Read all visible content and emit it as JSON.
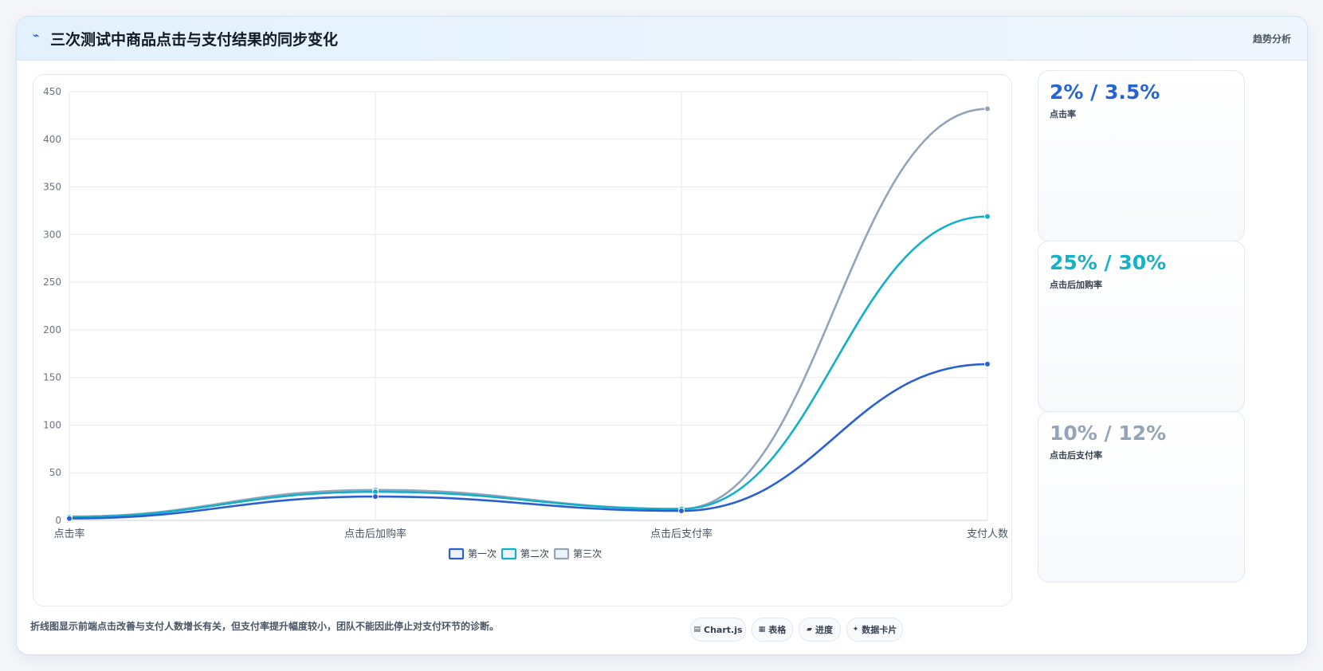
{
  "header": {
    "title": "三次测试中商品点击与支付结果的同步变化",
    "title_icon": "trend-icon",
    "tag": "趋势分析"
  },
  "chart_data": {
    "type": "line",
    "categories": [
      "点击率",
      "点击后加购率",
      "点击后支付率",
      "支付人数"
    ],
    "ylim": [
      0,
      450
    ],
    "yticks": [
      0,
      50,
      100,
      150,
      200,
      250,
      300,
      350,
      400,
      450
    ],
    "grid": true,
    "legend_position": "bottom",
    "series": [
      {
        "name": "第一次",
        "values": [
          2,
          25,
          10,
          164
        ],
        "color": "#2b5fd1"
      },
      {
        "name": "第二次",
        "values": [
          3.5,
          30,
          12,
          319
        ],
        "color": "#12b0c8"
      },
      {
        "name": "第三次",
        "values": [
          4,
          32,
          12,
          432
        ],
        "color": "#94a3b8"
      }
    ]
  },
  "cards": [
    {
      "value": "2% / 3.5%",
      "label": "点击率",
      "color": "#2563d6"
    },
    {
      "value": "25% / 30%",
      "label": "点击后加购率",
      "color": "#14b2c7"
    },
    {
      "value": "10% / 12%",
      "label": "点击后支付率",
      "color": "#94a3b8"
    }
  ],
  "footnote": "折线图显示前端点击改善与支付人数增长有关，但支付率提升幅度较小，团队不能因此停止对支付环节的诊断。",
  "chips": [
    {
      "icon": "▤",
      "icon_name": "chart-icon",
      "label": "Chart.js"
    },
    {
      "icon": "▦",
      "icon_name": "table-icon",
      "label": "表格"
    },
    {
      "icon": "▰",
      "icon_name": "progress-icon",
      "label": "进度"
    },
    {
      "icon": "✦",
      "icon_name": "sparkle-icon",
      "label": "数据卡片"
    }
  ]
}
